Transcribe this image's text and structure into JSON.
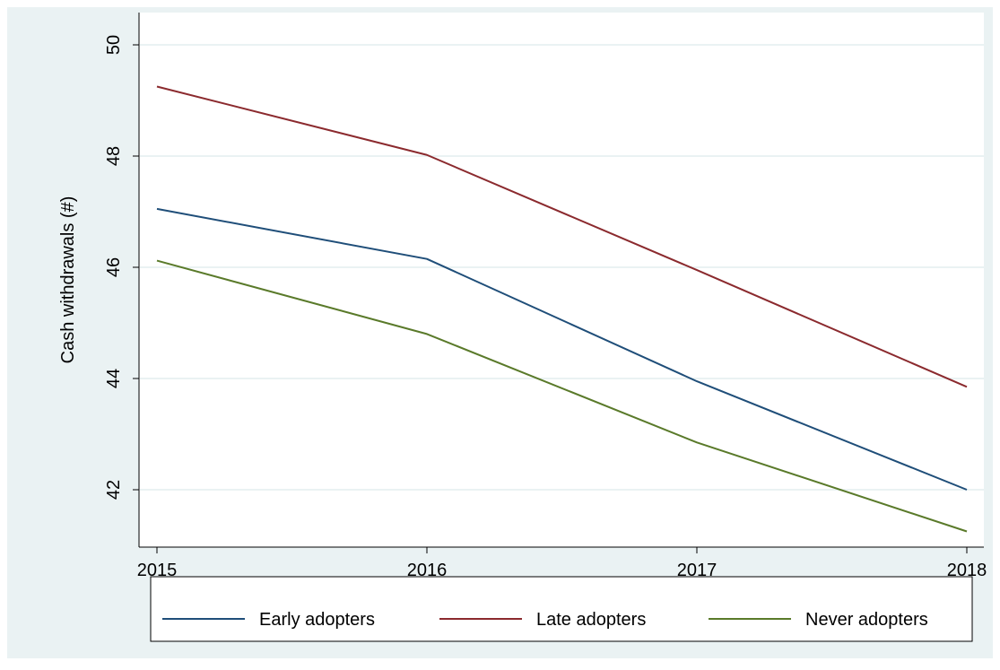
{
  "chart_data": {
    "type": "line",
    "x": [
      2015,
      2016,
      2017,
      2018
    ],
    "xlabel": "",
    "ylabel": "Cash withdrawals (#)",
    "xlim": [
      2015,
      2018
    ],
    "ylim": [
      41.3,
      50.0
    ],
    "xticks": [
      "2015",
      "2016",
      "2017",
      "2018"
    ],
    "yticks": [
      42,
      44,
      46,
      48,
      50
    ],
    "grid": true,
    "legend_position": "bottom",
    "series": [
      {
        "name": "Early adopters",
        "color": "#1f4e79",
        "values": [
          47.05,
          46.15,
          43.95,
          42.0
        ]
      },
      {
        "name": "Late adopters",
        "color": "#8b2a2e",
        "values": [
          49.25,
          48.02,
          45.95,
          43.85
        ]
      },
      {
        "name": "Never adopters",
        "color": "#5a7a2a",
        "values": [
          46.12,
          44.8,
          42.85,
          41.25
        ]
      }
    ]
  },
  "colors": {
    "outer_background": "#eaf2f3",
    "plot_background": "#ffffff",
    "grid": "#eaf2f3"
  }
}
